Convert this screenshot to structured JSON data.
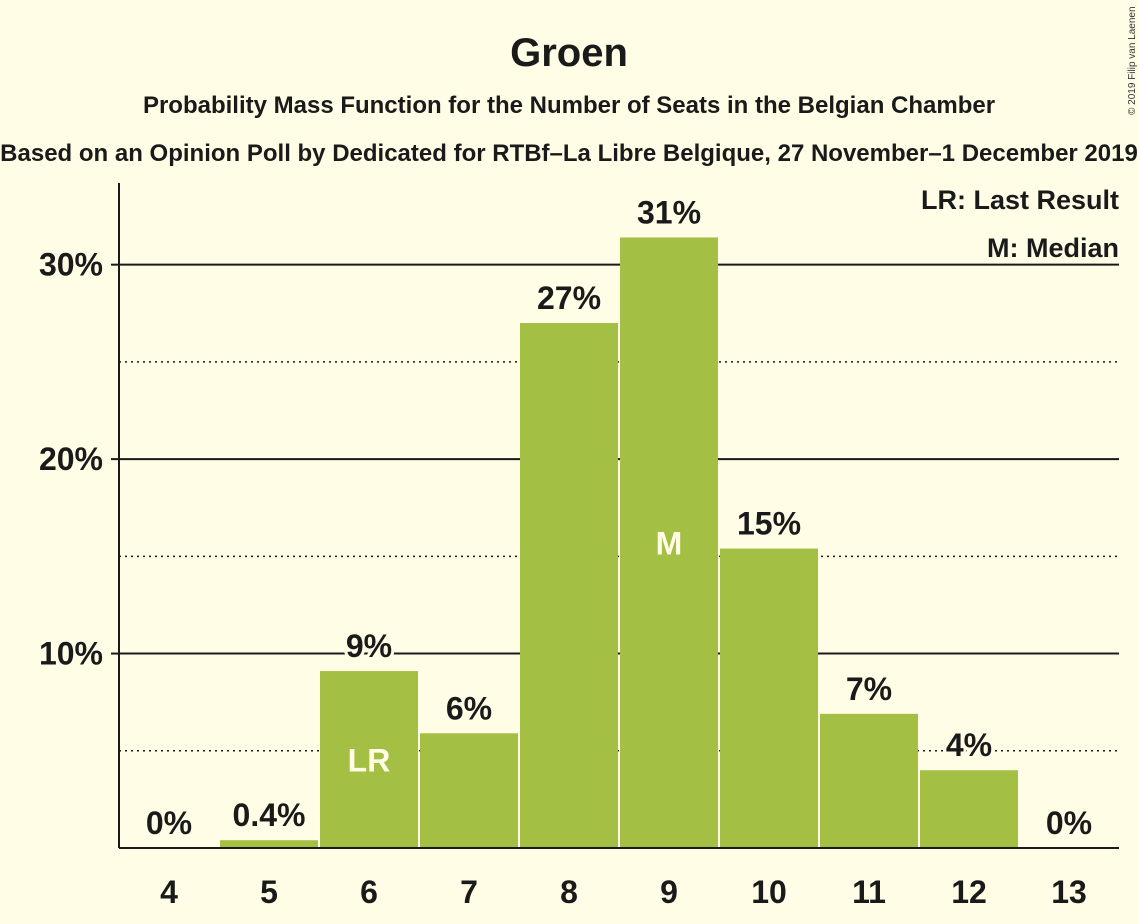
{
  "chart_data": {
    "type": "bar",
    "title": "Groen",
    "subtitle": "Probability Mass Function for the Number of Seats in the Belgian Chamber",
    "source": "Based on an Opinion Poll by Dedicated for RTBf–La Libre Belgique, 27 November–1 December 2019",
    "copyright": "© 2019 Filip van Laenen",
    "categories": [
      "4",
      "5",
      "6",
      "7",
      "8",
      "9",
      "10",
      "11",
      "12",
      "13"
    ],
    "values": [
      0,
      0.4,
      9.1,
      5.9,
      27.0,
      31.4,
      15.4,
      6.9,
      4.0,
      0
    ],
    "value_labels": [
      "0%",
      "0.4%",
      "9%",
      "6%",
      "27%",
      "31%",
      "15%",
      "7%",
      "4%",
      "0%"
    ],
    "bar_markers": {
      "6": "LR",
      "9": "M"
    },
    "ylim": [
      0,
      34.2
    ],
    "yticks": [
      10,
      20,
      30
    ],
    "ytick_labels": [
      "10%",
      "20%",
      "30%"
    ],
    "minor_gridlines": [
      5,
      15,
      25
    ],
    "legend": [
      "LR: Last Result",
      "M: Median"
    ],
    "legend_position": "top-right",
    "grid": true,
    "bar_color": "#a3bf44"
  }
}
